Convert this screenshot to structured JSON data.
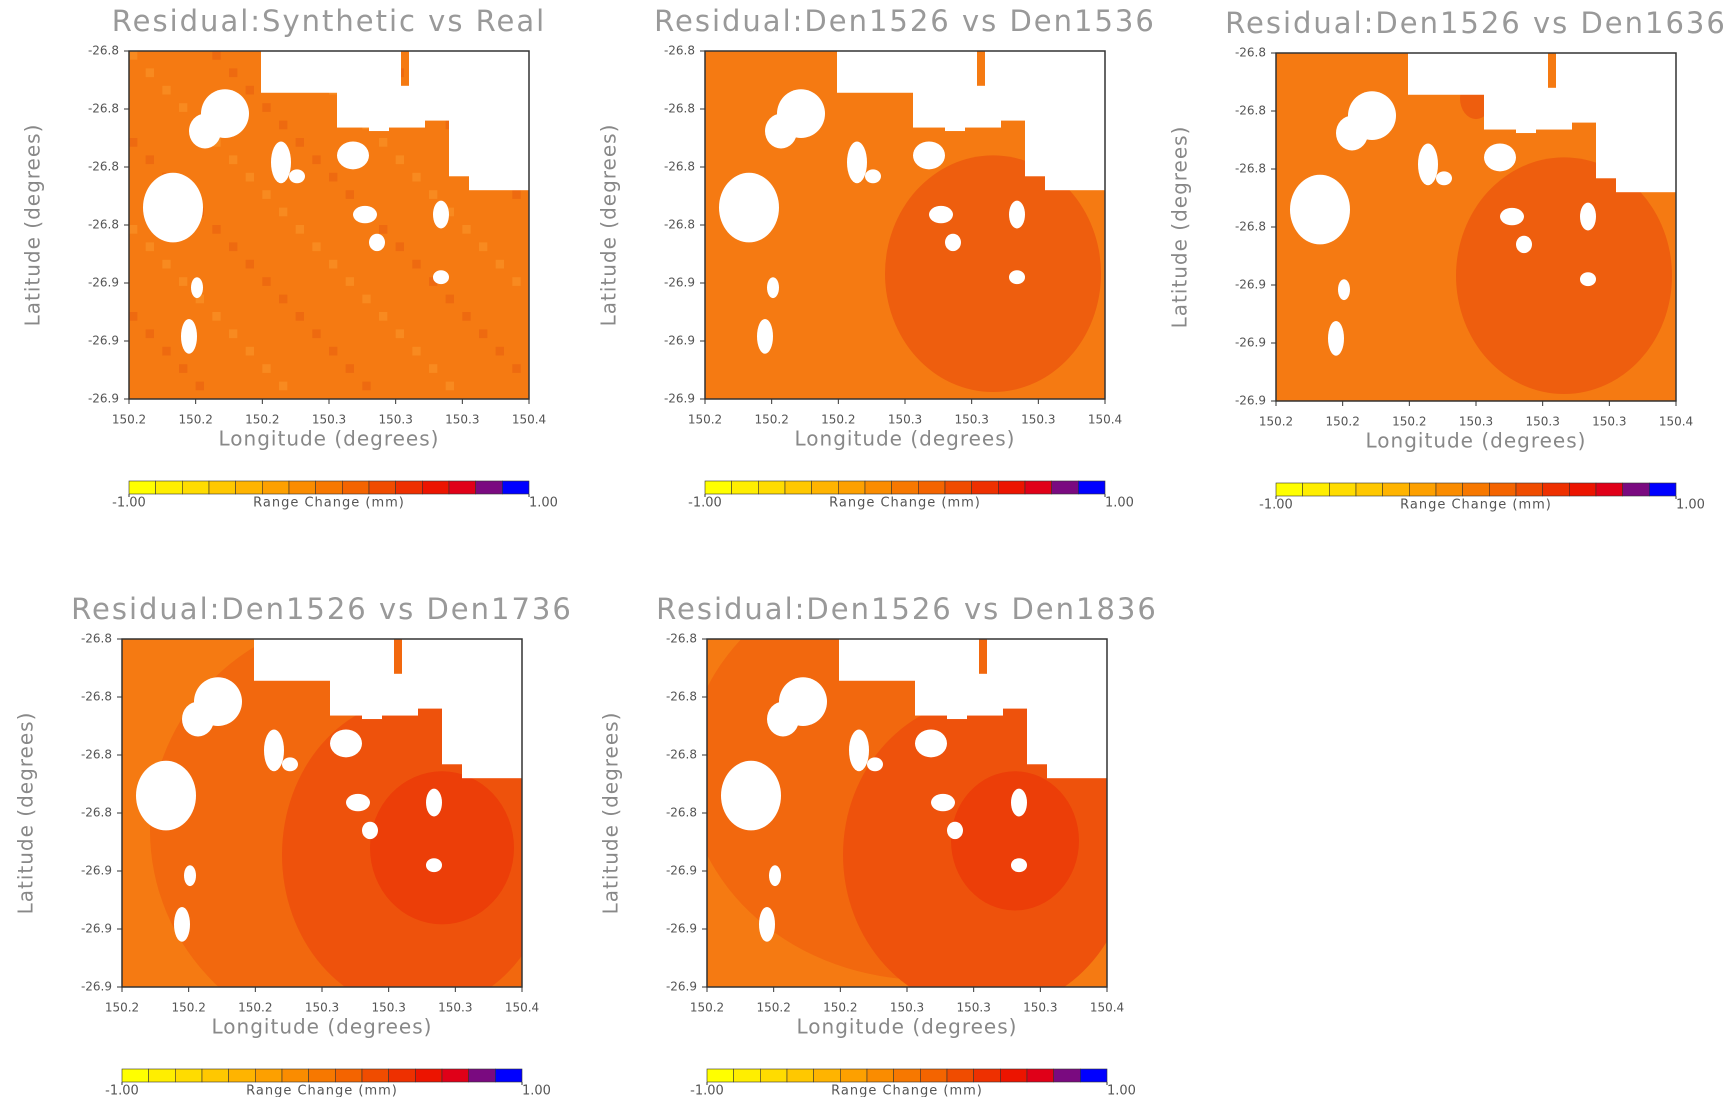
{
  "chart_data": [
    {
      "type": "map",
      "title": "Residual:Synthetic vs Real",
      "xlabel": "Longitude (degrees)",
      "ylabel": "Latitude (degrees)",
      "xlim": [
        150.18,
        150.36
      ],
      "ylim": [
        -26.9,
        -26.78
      ],
      "xticks": [
        {
          "value": 150.18,
          "label": "150.2"
        },
        {
          "value": 150.21,
          "label": "150.2"
        },
        {
          "value": 150.24,
          "label": "150.2"
        },
        {
          "value": 150.27,
          "label": "150.3"
        },
        {
          "value": 150.3,
          "label": "150.3"
        },
        {
          "value": 150.33,
          "label": "150.3"
        },
        {
          "value": 150.36,
          "label": "150.4"
        }
      ],
      "yticks": [
        {
          "value": -26.78,
          "label": "-26.8"
        },
        {
          "value": -26.8,
          "label": "-26.8"
        },
        {
          "value": -26.82,
          "label": "-26.8"
        },
        {
          "value": -26.84,
          "label": "-26.8"
        },
        {
          "value": -26.86,
          "label": "-26.9"
        },
        {
          "value": -26.88,
          "label": "-26.9"
        },
        {
          "value": -26.9,
          "label": "-26.9"
        }
      ],
      "colorbar": {
        "label": "Range Change (mm)",
        "lim": [
          -1,
          1
        ],
        "ticks": [
          {
            "value": -1,
            "label": "-1.00"
          },
          {
            "value": 1,
            "label": "1.00"
          }
        ],
        "colors": [
          "#ffff00",
          "#ffee00",
          "#ffdc00",
          "#ffc800",
          "#ffb400",
          "#fda000",
          "#fa8c00",
          "#f77800",
          "#f46400",
          "#f04c00",
          "#ee3000",
          "#ec1400",
          "#e00018",
          "#7a0a80",
          "#0000ff"
        ]
      }
    },
    {
      "type": "map",
      "title": "Residual:Den1526 vs Den1536",
      "xlabel": "Longitude (degrees)",
      "ylabel": "Latitude (degrees)",
      "xlim": [
        150.18,
        150.36
      ],
      "ylim": [
        -26.9,
        -26.78
      ],
      "xticks": [
        {
          "value": 150.18,
          "label": "150.2"
        },
        {
          "value": 150.21,
          "label": "150.2"
        },
        {
          "value": 150.24,
          "label": "150.2"
        },
        {
          "value": 150.27,
          "label": "150.3"
        },
        {
          "value": 150.3,
          "label": "150.3"
        },
        {
          "value": 150.33,
          "label": "150.3"
        },
        {
          "value": 150.36,
          "label": "150.4"
        }
      ],
      "yticks": [
        {
          "value": -26.78,
          "label": "-26.8"
        },
        {
          "value": -26.8,
          "label": "-26.8"
        },
        {
          "value": -26.82,
          "label": "-26.8"
        },
        {
          "value": -26.84,
          "label": "-26.8"
        },
        {
          "value": -26.86,
          "label": "-26.9"
        },
        {
          "value": -26.88,
          "label": "-26.9"
        },
        {
          "value": -26.9,
          "label": "-26.9"
        }
      ],
      "colorbar": {
        "label": "Range Change (mm)",
        "lim": [
          -1,
          1
        ],
        "ticks": [
          {
            "value": -1,
            "label": "-1.00"
          },
          {
            "value": 1,
            "label": "1.00"
          }
        ],
        "colors": [
          "#ffff00",
          "#ffee00",
          "#ffdc00",
          "#ffc800",
          "#ffb400",
          "#fda000",
          "#fa8c00",
          "#f77800",
          "#f46400",
          "#f04c00",
          "#ee3000",
          "#ec1400",
          "#e00018",
          "#7a0a80",
          "#0000ff"
        ]
      }
    },
    {
      "type": "map",
      "title": "Residual:Den1526 vs Den1636",
      "xlabel": "Longitude (degrees)",
      "ylabel": "Latitude (degrees)",
      "xlim": [
        150.18,
        150.36
      ],
      "ylim": [
        -26.9,
        -26.78
      ],
      "xticks": [
        {
          "value": 150.18,
          "label": "150.2"
        },
        {
          "value": 150.21,
          "label": "150.2"
        },
        {
          "value": 150.24,
          "label": "150.2"
        },
        {
          "value": 150.27,
          "label": "150.3"
        },
        {
          "value": 150.3,
          "label": "150.3"
        },
        {
          "value": 150.33,
          "label": "150.3"
        },
        {
          "value": 150.36,
          "label": "150.4"
        }
      ],
      "yticks": [
        {
          "value": -26.78,
          "label": "-26.8"
        },
        {
          "value": -26.8,
          "label": "-26.8"
        },
        {
          "value": -26.82,
          "label": "-26.8"
        },
        {
          "value": -26.84,
          "label": "-26.8"
        },
        {
          "value": -26.86,
          "label": "-26.9"
        },
        {
          "value": -26.88,
          "label": "-26.9"
        },
        {
          "value": -26.9,
          "label": "-26.9"
        }
      ],
      "colorbar": {
        "label": "Range Change (mm)",
        "lim": [
          -1,
          1
        ],
        "ticks": [
          {
            "value": -1,
            "label": "-1.00"
          },
          {
            "value": 1,
            "label": "1.00"
          }
        ],
        "colors": [
          "#ffff00",
          "#ffee00",
          "#ffdc00",
          "#ffc800",
          "#ffb400",
          "#fda000",
          "#fa8c00",
          "#f77800",
          "#f46400",
          "#f04c00",
          "#ee3000",
          "#ec1400",
          "#e00018",
          "#7a0a80",
          "#0000ff"
        ]
      }
    },
    {
      "type": "map",
      "title": "Residual:Den1526 vs Den1736",
      "xlabel": "Longitude (degrees)",
      "ylabel": "Latitude (degrees)",
      "xlim": [
        150.18,
        150.36
      ],
      "ylim": [
        -26.9,
        -26.78
      ],
      "xticks": [
        {
          "value": 150.18,
          "label": "150.2"
        },
        {
          "value": 150.21,
          "label": "150.2"
        },
        {
          "value": 150.24,
          "label": "150.2"
        },
        {
          "value": 150.27,
          "label": "150.3"
        },
        {
          "value": 150.3,
          "label": "150.3"
        },
        {
          "value": 150.33,
          "label": "150.3"
        },
        {
          "value": 150.36,
          "label": "150.4"
        }
      ],
      "yticks": [
        {
          "value": -26.78,
          "label": "-26.8"
        },
        {
          "value": -26.8,
          "label": "-26.8"
        },
        {
          "value": -26.82,
          "label": "-26.8"
        },
        {
          "value": -26.84,
          "label": "-26.8"
        },
        {
          "value": -26.86,
          "label": "-26.9"
        },
        {
          "value": -26.88,
          "label": "-26.9"
        },
        {
          "value": -26.9,
          "label": "-26.9"
        }
      ],
      "colorbar": {
        "label": "Range Change (mm)",
        "lim": [
          -1,
          1
        ],
        "ticks": [
          {
            "value": -1,
            "label": "-1.00"
          },
          {
            "value": 1,
            "label": "1.00"
          }
        ],
        "colors": [
          "#ffff00",
          "#ffee00",
          "#ffdc00",
          "#ffc800",
          "#ffb400",
          "#fda000",
          "#fa8c00",
          "#f77800",
          "#f46400",
          "#f04c00",
          "#ee3000",
          "#ec1400",
          "#e00018",
          "#7a0a80",
          "#0000ff"
        ]
      }
    },
    {
      "type": "map",
      "title": "Residual:Den1526 vs Den1836",
      "xlabel": "Longitude (degrees)",
      "ylabel": "Latitude (degrees)",
      "xlim": [
        150.18,
        150.36
      ],
      "ylim": [
        -26.9,
        -26.78
      ],
      "xticks": [
        {
          "value": 150.18,
          "label": "150.2"
        },
        {
          "value": 150.21,
          "label": "150.2"
        },
        {
          "value": 150.24,
          "label": "150.2"
        },
        {
          "value": 150.27,
          "label": "150.3"
        },
        {
          "value": 150.3,
          "label": "150.3"
        },
        {
          "value": 150.33,
          "label": "150.3"
        },
        {
          "value": 150.36,
          "label": "150.4"
        }
      ],
      "yticks": [
        {
          "value": -26.78,
          "label": "-26.8"
        },
        {
          "value": -26.8,
          "label": "-26.8"
        },
        {
          "value": -26.82,
          "label": "-26.8"
        },
        {
          "value": -26.84,
          "label": "-26.8"
        },
        {
          "value": -26.86,
          "label": "-26.9"
        },
        {
          "value": -26.88,
          "label": "-26.9"
        },
        {
          "value": -26.9,
          "label": "-26.9"
        }
      ],
      "colorbar": {
        "label": "Range Change (mm)",
        "lim": [
          -1,
          1
        ],
        "ticks": [
          {
            "value": -1,
            "label": "-1.00"
          },
          {
            "value": 1,
            "label": "1.00"
          }
        ],
        "colors": [
          "#ffff00",
          "#ffee00",
          "#ffdc00",
          "#ffc800",
          "#ffb400",
          "#fda000",
          "#fa8c00",
          "#f77800",
          "#f46400",
          "#f04c00",
          "#ee3000",
          "#ec1400",
          "#e00018",
          "#7a0a80",
          "#0000ff"
        ]
      }
    }
  ]
}
